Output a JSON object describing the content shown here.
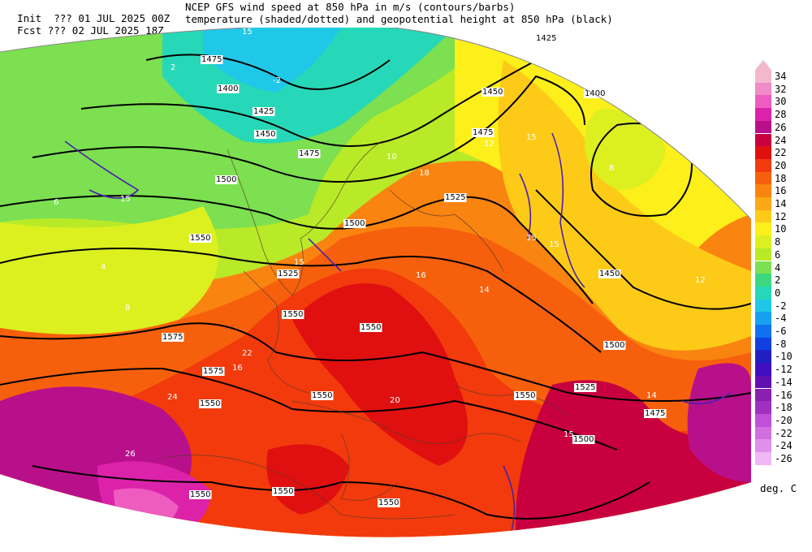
{
  "header": {
    "init_line": "Init  ??? 01 JUL 2025 00Z",
    "fcst_line": "Fcst ??? 02 JUL 2025 18Z",
    "title_line1": "NCEP GFS wind speed at 850 hPa in m/s (contours/barbs)",
    "title_line2": "temperature (shaded/dotted) and geopotential height at 850 hPa (black)"
  },
  "legend": {
    "units": "deg. C",
    "levels": [
      {
        "label": "34",
        "color": "#f4b8cc"
      },
      {
        "label": "32",
        "color": "#f08cc8"
      },
      {
        "label": "30",
        "color": "#ee5cc0"
      },
      {
        "label": "28",
        "color": "#dd22aa"
      },
      {
        "label": "26",
        "color": "#b8108a"
      },
      {
        "label": "24",
        "color": "#c80040"
      },
      {
        "label": "22",
        "color": "#e01010"
      },
      {
        "label": "20",
        "color": "#f23a0c"
      },
      {
        "label": "18",
        "color": "#f6600c"
      },
      {
        "label": "16",
        "color": "#fa8410"
      },
      {
        "label": "14",
        "color": "#fca816"
      },
      {
        "label": "12",
        "color": "#fdca18"
      },
      {
        "label": "10",
        "color": "#fdef1a"
      },
      {
        "label": "8",
        "color": "#dcf020"
      },
      {
        "label": "6",
        "color": "#b8ea28"
      },
      {
        "label": "4",
        "color": "#7ce050"
      },
      {
        "label": "2",
        "color": "#3cd880"
      },
      {
        "label": "0",
        "color": "#26d8b8"
      },
      {
        "label": "-2",
        "color": "#20c8e8"
      },
      {
        "label": "-4",
        "color": "#18a0f0"
      },
      {
        "label": "-6",
        "color": "#1070f0"
      },
      {
        "label": "-8",
        "color": "#1040e0"
      },
      {
        "label": "-10",
        "color": "#2020c0"
      },
      {
        "label": "-12",
        "color": "#4010c0"
      },
      {
        "label": "-14",
        "color": "#6010b0"
      },
      {
        "label": "-16",
        "color": "#8a20b0"
      },
      {
        "label": "-18",
        "color": "#a030c0"
      },
      {
        "label": "-20",
        "color": "#c050d8"
      },
      {
        "label": "-22",
        "color": "#d070e0"
      },
      {
        "label": "-24",
        "color": "#e090ec"
      },
      {
        "label": "-26",
        "color": "#f0b8f4"
      }
    ]
  },
  "height_labels": [
    "1475",
    "1400",
    "1425",
    "1450",
    "1475",
    "1500",
    "1525",
    "1550",
    "1575",
    "1575",
    "1550",
    "1425",
    "1400",
    "1450",
    "1475",
    "1500",
    "1525",
    "1550",
    "1550",
    "1550",
    "1550",
    "1500",
    "1450",
    "1475",
    "1500",
    "1525",
    "1550",
    "1550",
    "1550"
  ],
  "temperature_labels": [
    "-2",
    "4",
    "6",
    "8",
    "10",
    "12",
    "14",
    "16",
    "18",
    "20",
    "22",
    "24",
    "26",
    "2",
    "8",
    "12",
    "14",
    "16"
  ],
  "wind_labels": [
    "15",
    "15",
    "15",
    "15",
    "15",
    "15",
    "15"
  ]
}
